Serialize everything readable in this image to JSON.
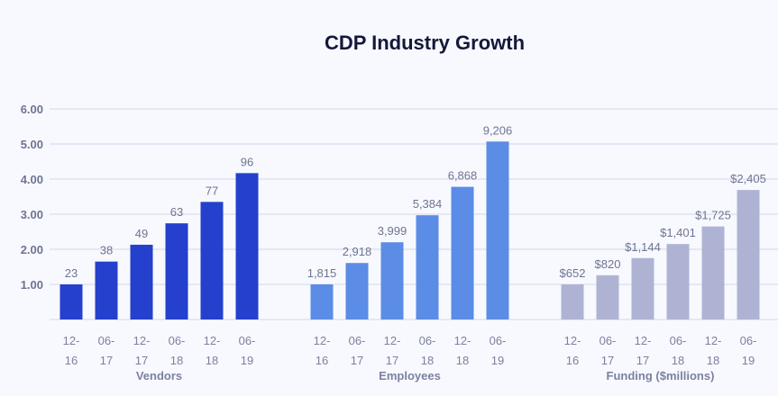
{
  "chart_data": {
    "type": "bar",
    "title": "CDP Industry Growth",
    "ylim": [
      0,
      6
    ],
    "yticks": [
      "1.00",
      "2.00",
      "3.00",
      "4.00",
      "5.00",
      "6.00"
    ],
    "grid": true,
    "categories": [
      "12-16",
      "06-17",
      "12-17",
      "06-18",
      "12-18",
      "06-19"
    ],
    "groups": [
      {
        "name": "Vendors",
        "color": "#2440cc",
        "labels": [
          "23",
          "38",
          "49",
          "63",
          "77",
          "96"
        ],
        "values": [
          1.0,
          1.65,
          2.13,
          2.74,
          3.35,
          4.17
        ]
      },
      {
        "name": "Employees",
        "color": "#5b8ce6",
        "labels": [
          "1,815",
          "2,918",
          "3,999",
          "5,384",
          "6,868",
          "9,206"
        ],
        "values": [
          1.0,
          1.61,
          2.2,
          2.97,
          3.78,
          5.07
        ]
      },
      {
        "name": "Funding ($millions)",
        "color": "#afb3d3",
        "labels": [
          "$652",
          "$820",
          "$1,144",
          "$1,401",
          "$1,725",
          "$2,405"
        ],
        "values": [
          1.0,
          1.26,
          1.75,
          2.15,
          2.65,
          3.69
        ]
      }
    ]
  }
}
